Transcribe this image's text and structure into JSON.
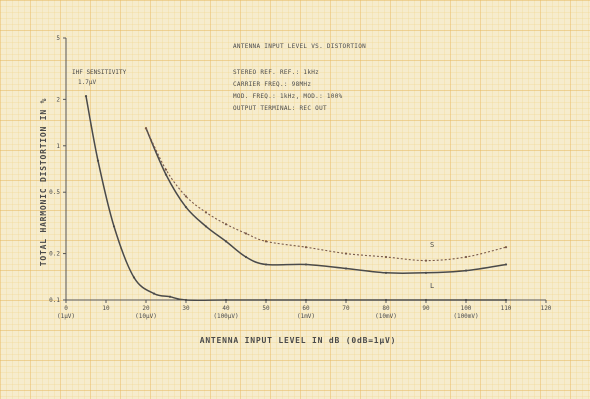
{
  "chart_data": {
    "type": "line",
    "title": "ANTENNA INPUT LEVEL VS. DISTORTION",
    "notes": [
      "STEREO REF. REF.: 1kHz",
      "CARRIER FREQ.: 98MHz",
      "MOD. FREQ.: 1kHz, MOD.: 100%",
      "OUTPUT TERMINAL: REC OUT"
    ],
    "xlabel": "ANTENNA INPUT LEVEL IN dB (0dB=1μV)",
    "ylabel": "TOTAL HARMONIC DISTORTION IN %",
    "x_ticks": [
      {
        "v": 0,
        "label": "0",
        "sub": "(1μV)"
      },
      {
        "v": 10,
        "label": "10",
        "sub": ""
      },
      {
        "v": 20,
        "label": "20",
        "sub": "(10μV)"
      },
      {
        "v": 30,
        "label": "30",
        "sub": ""
      },
      {
        "v": 40,
        "label": "40",
        "sub": "(100μV)"
      },
      {
        "v": 50,
        "label": "50",
        "sub": ""
      },
      {
        "v": 60,
        "label": "60",
        "sub": "(1mV)"
      },
      {
        "v": 70,
        "label": "70",
        "sub": ""
      },
      {
        "v": 80,
        "label": "80",
        "sub": "(10mV)"
      },
      {
        "v": 90,
        "label": "90",
        "sub": ""
      },
      {
        "v": 100,
        "label": "100",
        "sub": "(100mV)"
      },
      {
        "v": 110,
        "label": "110",
        "sub": ""
      },
      {
        "v": 120,
        "label": "120",
        "sub": ""
      }
    ],
    "y_ticks": [
      {
        "v": 0.1,
        "label": "0.1"
      },
      {
        "v": 0.2,
        "label": "0.2"
      },
      {
        "v": 0.5,
        "label": "0.5"
      },
      {
        "v": 1,
        "label": "1"
      },
      {
        "v": 2,
        "label": "2"
      },
      {
        "v": 5,
        "label": "5"
      }
    ],
    "xlim": [
      0,
      120
    ],
    "ylim": [
      0.1,
      5
    ],
    "yscale": "log",
    "sensitivity_label": [
      "IHF SENSITIVITY",
      "1.7μV"
    ],
    "series": [
      {
        "name": "",
        "color": "#4a4a4a",
        "dashed": false,
        "x": [
          5,
          8,
          12,
          17,
          22,
          26,
          30,
          40,
          50,
          60,
          70,
          80,
          90,
          100,
          110
        ],
        "y": [
          2.1,
          0.8,
          0.3,
          0.14,
          0.11,
          0.105,
          0.1,
          0.1,
          0.1,
          0.1,
          0.1,
          0.1,
          0.1,
          0.1,
          0.1
        ]
      },
      {
        "name": "",
        "color": "#4a4a4a",
        "dashed": false,
        "x": [
          20,
          25,
          30,
          35,
          40,
          45,
          50,
          60,
          70,
          80,
          90,
          100,
          110
        ],
        "y": [
          1.3,
          0.65,
          0.4,
          0.3,
          0.24,
          0.19,
          0.17,
          0.17,
          0.16,
          0.15,
          0.15,
          0.155,
          0.17
        ]
      },
      {
        "name": "",
        "color": "#7a5a4a",
        "dashed": true,
        "x": [
          20,
          25,
          30,
          35,
          40,
          45,
          50,
          60,
          70,
          80,
          90,
          100,
          110
        ],
        "y": [
          1.3,
          0.7,
          0.47,
          0.37,
          0.31,
          0.27,
          0.24,
          0.22,
          0.2,
          0.19,
          0.18,
          0.19,
          0.22
        ]
      }
    ],
    "curve_labels": [
      {
        "text": "S",
        "x": 91,
        "y": 0.22
      },
      {
        "text": "L",
        "x": 91,
        "y": 0.12
      }
    ]
  }
}
